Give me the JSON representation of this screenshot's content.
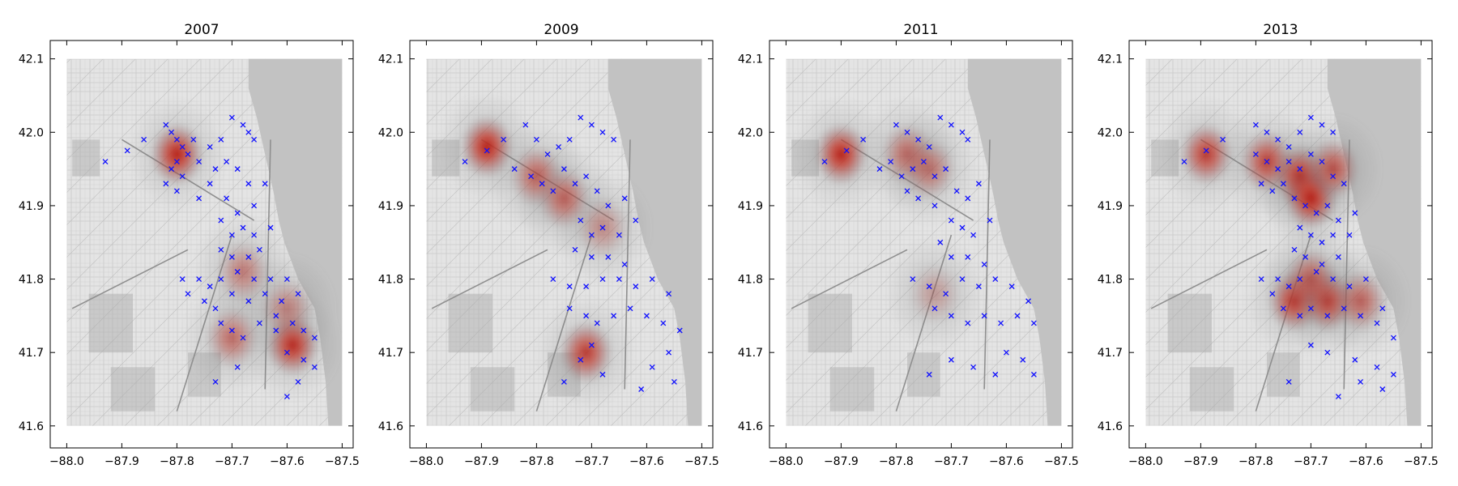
{
  "chart_data": [
    {
      "type": "scatter",
      "title": "2007",
      "xlim": [
        -88.0,
        -87.5
      ],
      "ylim": [
        41.6,
        42.1
      ],
      "xticks": [
        "−88.0",
        "−87.9",
        "−87.8",
        "−87.7",
        "−87.6",
        "−87.5"
      ],
      "yticks": [
        "41.6",
        "41.7",
        "41.8",
        "41.9",
        "42.0",
        "42.1"
      ],
      "background": "street map of Chicago (grayscale) with red kernel-density heat overlay",
      "hotspots": [
        {
          "x": -87.8,
          "y": 41.97,
          "strength": 1.0
        },
        {
          "x": -87.59,
          "y": 41.71,
          "strength": 0.95
        },
        {
          "x": -87.7,
          "y": 41.72,
          "strength": 0.55
        },
        {
          "x": -87.68,
          "y": 41.81,
          "strength": 0.45
        },
        {
          "x": -87.6,
          "y": 41.76,
          "strength": 0.4
        }
      ],
      "markers": [
        [
          -87.93,
          41.96
        ],
        [
          -87.89,
          41.975
        ],
        [
          -87.86,
          41.99
        ],
        [
          -87.82,
          42.01
        ],
        [
          -87.81,
          42.0
        ],
        [
          -87.8,
          41.99
        ],
        [
          -87.79,
          41.98
        ],
        [
          -87.78,
          41.97
        ],
        [
          -87.8,
          41.96
        ],
        [
          -87.81,
          41.95
        ],
        [
          -87.79,
          41.94
        ],
        [
          -87.82,
          41.93
        ],
        [
          -87.8,
          41.92
        ],
        [
          -87.77,
          41.99
        ],
        [
          -87.76,
          41.96
        ],
        [
          -87.74,
          41.98
        ],
        [
          -87.72,
          41.99
        ],
        [
          -87.7,
          42.02
        ],
        [
          -87.68,
          42.01
        ],
        [
          -87.67,
          42.0
        ],
        [
          -87.66,
          41.99
        ],
        [
          -87.73,
          41.95
        ],
        [
          -87.71,
          41.96
        ],
        [
          -87.69,
          41.95
        ],
        [
          -87.67,
          41.93
        ],
        [
          -87.74,
          41.93
        ],
        [
          -87.76,
          41.91
        ],
        [
          -87.71,
          41.91
        ],
        [
          -87.69,
          41.89
        ],
        [
          -87.66,
          41.9
        ],
        [
          -87.64,
          41.93
        ],
        [
          -87.72,
          41.88
        ],
        [
          -87.7,
          41.86
        ],
        [
          -87.68,
          41.87
        ],
        [
          -87.66,
          41.86
        ],
        [
          -87.63,
          41.87
        ],
        [
          -87.72,
          41.84
        ],
        [
          -87.7,
          41.83
        ],
        [
          -87.67,
          41.83
        ],
        [
          -87.65,
          41.84
        ],
        [
          -87.79,
          41.8
        ],
        [
          -87.76,
          41.8
        ],
        [
          -87.74,
          41.79
        ],
        [
          -87.72,
          41.8
        ],
        [
          -87.69,
          41.81
        ],
        [
          -87.66,
          41.8
        ],
        [
          -87.63,
          41.8
        ],
        [
          -87.6,
          41.8
        ],
        [
          -87.78,
          41.78
        ],
        [
          -87.75,
          41.77
        ],
        [
          -87.73,
          41.76
        ],
        [
          -87.7,
          41.78
        ],
        [
          -87.67,
          41.77
        ],
        [
          -87.64,
          41.78
        ],
        [
          -87.61,
          41.77
        ],
        [
          -87.58,
          41.78
        ],
        [
          -87.72,
          41.74
        ],
        [
          -87.7,
          41.73
        ],
        [
          -87.68,
          41.72
        ],
        [
          -87.65,
          41.74
        ],
        [
          -87.62,
          41.75
        ],
        [
          -87.59,
          41.74
        ],
        [
          -87.57,
          41.73
        ],
        [
          -87.55,
          41.72
        ],
        [
          -87.6,
          41.7
        ],
        [
          -87.57,
          41.69
        ],
        [
          -87.55,
          41.68
        ],
        [
          -87.58,
          41.66
        ],
        [
          -87.73,
          41.66
        ],
        [
          -87.69,
          41.68
        ],
        [
          -87.6,
          41.64
        ],
        [
          -87.62,
          41.73
        ]
      ]
    },
    {
      "type": "scatter",
      "title": "2009",
      "xlim": [
        -88.0,
        -87.5
      ],
      "ylim": [
        41.6,
        42.1
      ],
      "xticks": [
        "−88.0",
        "−87.9",
        "−87.8",
        "−87.7",
        "−87.6",
        "−87.5"
      ],
      "yticks": [
        "41.6",
        "41.7",
        "41.8",
        "41.9",
        "42.0",
        "42.1"
      ],
      "background": "street map of Chicago (grayscale) with red kernel-density heat overlay",
      "hotspots": [
        {
          "x": -87.89,
          "y": 41.98,
          "strength": 1.0
        },
        {
          "x": -87.8,
          "y": 41.94,
          "strength": 0.6
        },
        {
          "x": -87.75,
          "y": 41.91,
          "strength": 0.6
        },
        {
          "x": -87.71,
          "y": 41.7,
          "strength": 0.85
        },
        {
          "x": -87.68,
          "y": 41.87,
          "strength": 0.35
        }
      ],
      "markers": [
        [
          -87.93,
          41.96
        ],
        [
          -87.89,
          41.975
        ],
        [
          -87.86,
          41.99
        ],
        [
          -87.82,
          42.01
        ],
        [
          -87.8,
          41.99
        ],
        [
          -87.78,
          41.97
        ],
        [
          -87.76,
          41.98
        ],
        [
          -87.74,
          41.99
        ],
        [
          -87.72,
          42.02
        ],
        [
          -87.7,
          42.01
        ],
        [
          -87.68,
          42.0
        ],
        [
          -87.66,
          41.99
        ],
        [
          -87.84,
          41.95
        ],
        [
          -87.81,
          41.94
        ],
        [
          -87.79,
          41.93
        ],
        [
          -87.77,
          41.92
        ],
        [
          -87.75,
          41.95
        ],
        [
          -87.73,
          41.93
        ],
        [
          -87.71,
          41.94
        ],
        [
          -87.69,
          41.92
        ],
        [
          -87.67,
          41.9
        ],
        [
          -87.64,
          41.91
        ],
        [
          -87.72,
          41.88
        ],
        [
          -87.7,
          41.86
        ],
        [
          -87.68,
          41.87
        ],
        [
          -87.65,
          41.86
        ],
        [
          -87.62,
          41.88
        ],
        [
          -87.73,
          41.84
        ],
        [
          -87.7,
          41.83
        ],
        [
          -87.67,
          41.83
        ],
        [
          -87.64,
          41.82
        ],
        [
          -87.77,
          41.8
        ],
        [
          -87.74,
          41.79
        ],
        [
          -87.71,
          41.79
        ],
        [
          -87.68,
          41.8
        ],
        [
          -87.65,
          41.8
        ],
        [
          -87.62,
          41.79
        ],
        [
          -87.59,
          41.8
        ],
        [
          -87.56,
          41.78
        ],
        [
          -87.74,
          41.76
        ],
        [
          -87.71,
          41.75
        ],
        [
          -87.69,
          41.74
        ],
        [
          -87.66,
          41.75
        ],
        [
          -87.63,
          41.76
        ],
        [
          -87.6,
          41.75
        ],
        [
          -87.57,
          41.74
        ],
        [
          -87.54,
          41.73
        ],
        [
          -87.7,
          41.71
        ],
        [
          -87.72,
          41.69
        ],
        [
          -87.68,
          41.67
        ],
        [
          -87.59,
          41.68
        ],
        [
          -87.56,
          41.7
        ],
        [
          -87.55,
          41.66
        ],
        [
          -87.61,
          41.65
        ],
        [
          -87.75,
          41.66
        ]
      ]
    },
    {
      "type": "scatter",
      "title": "2011",
      "xlim": [
        -88.0,
        -87.5
      ],
      "ylim": [
        41.6,
        42.1
      ],
      "xticks": [
        "−88.0",
        "−87.9",
        "−87.8",
        "−87.7",
        "−87.6",
        "−87.5"
      ],
      "yticks": [
        "41.6",
        "41.7",
        "41.8",
        "41.9",
        "42.0",
        "42.1"
      ],
      "background": "street map of Chicago (grayscale) with red kernel-density heat overlay",
      "hotspots": [
        {
          "x": -87.9,
          "y": 41.97,
          "strength": 1.0
        },
        {
          "x": -87.78,
          "y": 41.97,
          "strength": 0.55
        },
        {
          "x": -87.74,
          "y": 41.95,
          "strength": 0.5
        },
        {
          "x": -87.73,
          "y": 41.78,
          "strength": 0.25
        }
      ],
      "markers": [
        [
          -87.93,
          41.96
        ],
        [
          -87.89,
          41.975
        ],
        [
          -87.86,
          41.99
        ],
        [
          -87.8,
          42.01
        ],
        [
          -87.78,
          42.0
        ],
        [
          -87.76,
          41.99
        ],
        [
          -87.74,
          41.98
        ],
        [
          -87.72,
          42.02
        ],
        [
          -87.7,
          42.01
        ],
        [
          -87.68,
          42.0
        ],
        [
          -87.67,
          41.99
        ],
        [
          -87.83,
          41.95
        ],
        [
          -87.81,
          41.96
        ],
        [
          -87.79,
          41.94
        ],
        [
          -87.77,
          41.95
        ],
        [
          -87.75,
          41.96
        ],
        [
          -87.73,
          41.94
        ],
        [
          -87.71,
          41.95
        ],
        [
          -87.69,
          41.92
        ],
        [
          -87.67,
          41.91
        ],
        [
          -87.65,
          41.93
        ],
        [
          -87.78,
          41.92
        ],
        [
          -87.76,
          41.91
        ],
        [
          -87.73,
          41.9
        ],
        [
          -87.7,
          41.88
        ],
        [
          -87.68,
          41.87
        ],
        [
          -87.66,
          41.86
        ],
        [
          -87.63,
          41.88
        ],
        [
          -87.72,
          41.85
        ],
        [
          -87.7,
          41.83
        ],
        [
          -87.67,
          41.83
        ],
        [
          -87.64,
          41.82
        ],
        [
          -87.77,
          41.8
        ],
        [
          -87.74,
          41.79
        ],
        [
          -87.71,
          41.78
        ],
        [
          -87.68,
          41.8
        ],
        [
          -87.65,
          41.79
        ],
        [
          -87.62,
          41.8
        ],
        [
          -87.59,
          41.79
        ],
        [
          -87.56,
          41.77
        ],
        [
          -87.73,
          41.76
        ],
        [
          -87.7,
          41.75
        ],
        [
          -87.67,
          41.74
        ],
        [
          -87.64,
          41.75
        ],
        [
          -87.61,
          41.74
        ],
        [
          -87.58,
          41.75
        ],
        [
          -87.55,
          41.74
        ],
        [
          -87.6,
          41.7
        ],
        [
          -87.57,
          41.69
        ],
        [
          -87.55,
          41.67
        ],
        [
          -87.62,
          41.67
        ],
        [
          -87.66,
          41.68
        ],
        [
          -87.7,
          41.69
        ],
        [
          -87.74,
          41.67
        ]
      ]
    },
    {
      "type": "scatter",
      "title": "2013",
      "xlim": [
        -88.0,
        -87.5
      ],
      "ylim": [
        41.6,
        42.1
      ],
      "xticks": [
        "−88.0",
        "−87.9",
        "−87.8",
        "−87.7",
        "−87.6",
        "−87.5"
      ],
      "yticks": [
        "41.6",
        "41.7",
        "41.8",
        "41.9",
        "42.0",
        "42.1"
      ],
      "background": "street map of Chicago (grayscale) with red kernel-density heat overlay",
      "hotspots": [
        {
          "x": -87.89,
          "y": 41.97,
          "strength": 0.85
        },
        {
          "x": -87.78,
          "y": 41.96,
          "strength": 0.8
        },
        {
          "x": -87.72,
          "y": 41.94,
          "strength": 0.9
        },
        {
          "x": -87.7,
          "y": 41.91,
          "strength": 1.0
        },
        {
          "x": -87.66,
          "y": 41.95,
          "strength": 0.7
        },
        {
          "x": -87.73,
          "y": 41.77,
          "strength": 0.85
        },
        {
          "x": -87.67,
          "y": 41.77,
          "strength": 0.8
        },
        {
          "x": -87.61,
          "y": 41.77,
          "strength": 0.6
        },
        {
          "x": -87.7,
          "y": 41.8,
          "strength": 0.6
        }
      ],
      "markers": [
        [
          -87.93,
          41.96
        ],
        [
          -87.89,
          41.975
        ],
        [
          -87.86,
          41.99
        ],
        [
          -87.8,
          42.01
        ],
        [
          -87.78,
          42.0
        ],
        [
          -87.76,
          41.99
        ],
        [
          -87.74,
          41.98
        ],
        [
          -87.72,
          42.0
        ],
        [
          -87.7,
          42.02
        ],
        [
          -87.68,
          42.01
        ],
        [
          -87.66,
          42.0
        ],
        [
          -87.8,
          41.97
        ],
        [
          -87.78,
          41.96
        ],
        [
          -87.76,
          41.95
        ],
        [
          -87.74,
          41.96
        ],
        [
          -87.72,
          41.95
        ],
        [
          -87.7,
          41.97
        ],
        [
          -87.68,
          41.96
        ],
        [
          -87.66,
          41.94
        ],
        [
          -87.64,
          41.93
        ],
        [
          -87.79,
          41.93
        ],
        [
          -87.77,
          41.92
        ],
        [
          -87.75,
          41.93
        ],
        [
          -87.73,
          41.91
        ],
        [
          -87.71,
          41.9
        ],
        [
          -87.69,
          41.89
        ],
        [
          -87.67,
          41.9
        ],
        [
          -87.65,
          41.88
        ],
        [
          -87.62,
          41.89
        ],
        [
          -87.72,
          41.87
        ],
        [
          -87.7,
          41.86
        ],
        [
          -87.68,
          41.85
        ],
        [
          -87.66,
          41.86
        ],
        [
          -87.63,
          41.86
        ],
        [
          -87.73,
          41.84
        ],
        [
          -87.71,
          41.83
        ],
        [
          -87.68,
          41.82
        ],
        [
          -87.65,
          41.83
        ],
        [
          -87.79,
          41.8
        ],
        [
          -87.76,
          41.8
        ],
        [
          -87.74,
          41.79
        ],
        [
          -87.72,
          41.8
        ],
        [
          -87.69,
          41.81
        ],
        [
          -87.66,
          41.8
        ],
        [
          -87.63,
          41.79
        ],
        [
          -87.6,
          41.8
        ],
        [
          -87.77,
          41.78
        ],
        [
          -87.75,
          41.76
        ],
        [
          -87.72,
          41.75
        ],
        [
          -87.7,
          41.76
        ],
        [
          -87.67,
          41.75
        ],
        [
          -87.64,
          41.76
        ],
        [
          -87.61,
          41.75
        ],
        [
          -87.58,
          41.74
        ],
        [
          -87.55,
          41.72
        ],
        [
          -87.57,
          41.76
        ],
        [
          -87.7,
          41.71
        ],
        [
          -87.67,
          41.7
        ],
        [
          -87.62,
          41.69
        ],
        [
          -87.58,
          41.68
        ],
        [
          -87.55,
          41.67
        ],
        [
          -87.57,
          41.65
        ],
        [
          -87.74,
          41.66
        ],
        [
          -87.65,
          41.64
        ],
        [
          -87.61,
          41.66
        ]
      ]
    }
  ]
}
